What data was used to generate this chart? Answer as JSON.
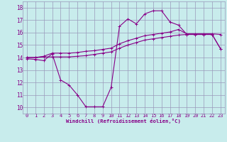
{
  "xlabel": "Windchill (Refroidissement éolien,°C)",
  "bg_color": "#c8ecec",
  "grid_color": "#9999bb",
  "line_color": "#880088",
  "xlim": [
    -0.5,
    23.5
  ],
  "ylim": [
    9.5,
    18.5
  ],
  "xticks": [
    0,
    1,
    2,
    3,
    4,
    5,
    6,
    7,
    8,
    9,
    10,
    11,
    12,
    13,
    14,
    15,
    16,
    17,
    18,
    19,
    20,
    21,
    22,
    23
  ],
  "yticks": [
    10,
    11,
    12,
    13,
    14,
    15,
    16,
    17,
    18
  ],
  "line1_x": [
    0,
    1,
    2,
    3,
    4,
    5,
    6,
    7,
    8,
    9,
    10,
    11,
    12,
    13,
    14,
    15,
    16,
    17,
    18,
    19,
    20,
    21,
    22,
    23
  ],
  "line1_y": [
    13.9,
    13.85,
    13.75,
    14.3,
    12.2,
    11.8,
    11.0,
    10.05,
    10.05,
    10.05,
    11.6,
    16.5,
    17.1,
    16.7,
    17.5,
    17.75,
    17.75,
    16.85,
    16.6,
    15.85,
    15.85,
    15.85,
    15.85,
    14.7
  ],
  "line2_x": [
    0,
    1,
    2,
    3,
    4,
    5,
    6,
    7,
    8,
    9,
    10,
    11,
    12,
    13,
    14,
    15,
    16,
    17,
    18,
    19,
    20,
    21,
    22,
    23
  ],
  "line2_y": [
    14.0,
    14.0,
    14.1,
    14.35,
    14.35,
    14.35,
    14.4,
    14.5,
    14.55,
    14.65,
    14.75,
    15.1,
    15.35,
    15.55,
    15.75,
    15.85,
    15.95,
    16.05,
    16.25,
    15.9,
    15.9,
    15.9,
    15.9,
    15.85
  ],
  "line3_x": [
    0,
    1,
    2,
    3,
    4,
    5,
    6,
    7,
    8,
    9,
    10,
    11,
    12,
    13,
    14,
    15,
    16,
    17,
    18,
    19,
    20,
    21,
    22,
    23
  ],
  "line3_y": [
    14.0,
    14.0,
    14.05,
    14.05,
    14.05,
    14.05,
    14.1,
    14.15,
    14.25,
    14.35,
    14.45,
    14.75,
    15.0,
    15.2,
    15.4,
    15.5,
    15.6,
    15.7,
    15.8,
    15.85,
    15.85,
    15.85,
    15.85,
    14.7
  ]
}
